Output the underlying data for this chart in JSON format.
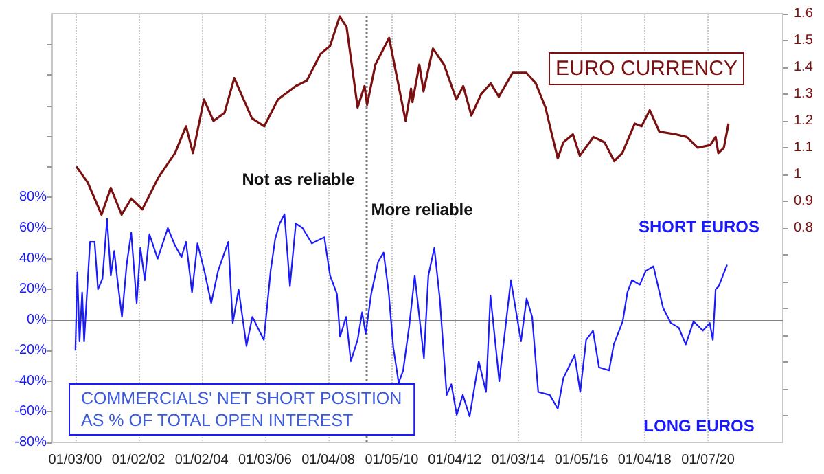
{
  "chart_data": {
    "type": "line",
    "series": [
      {
        "name": "EURO CURRENCY",
        "color": "#7b1010",
        "axis": "y2",
        "x": [
          "2000-01-16",
          "2000-05-26",
          "2000-11-02",
          "2001-02-17",
          "2001-06-22",
          "2001-10-11",
          "2002-02-16",
          "2002-08-23",
          "2003-03-01",
          "2003-07-06",
          "2003-09-24",
          "2004-01-29",
          "2004-05-18",
          "2004-09-23",
          "2005-01-13",
          "2005-05-01",
          "2005-08-05",
          "2005-12-26",
          "2006-06-02",
          "2006-12-25",
          "2007-04-30",
          "2007-10-06",
          "2008-01-25",
          "2008-05-15",
          "2008-08-03",
          "2008-12-08",
          "2009-02-26",
          "2009-03-27",
          "2009-07-01",
          "2009-12-07",
          "2010-06-15",
          "2010-08-17",
          "2010-09-02",
          "2010-11-21",
          "2011-01-08",
          "2011-04-27",
          "2011-09-02",
          "2012-01-22",
          "2012-04-11",
          "2012-07-14",
          "2012-11-04",
          "2013-02-23",
          "2013-05-27",
          "2013-11-03",
          "2014-04-09",
          "2014-07-28",
          "2014-11-17",
          "2015-02-06",
          "2015-04-08",
          "2015-06-11",
          "2015-09-30",
          "2015-12-18",
          "2016-05-24",
          "2016-09-29",
          "2017-01-19",
          "2017-04-22",
          "2017-09-13",
          "2017-12-01",
          "2018-03-05",
          "2018-06-24",
          "2018-12-30",
          "2019-05-06",
          "2019-09-11",
          "2020-02-02",
          "2020-04-04",
          "2020-05-05",
          "2020-07-08",
          "2020-08-31"
        ],
        "values": [
          1.03,
          0.97,
          0.85,
          0.95,
          0.85,
          0.91,
          0.87,
          0.99,
          1.08,
          1.18,
          1.08,
          1.28,
          1.2,
          1.23,
          1.36,
          1.28,
          1.21,
          1.18,
          1.28,
          1.33,
          1.35,
          1.45,
          1.48,
          1.59,
          1.55,
          1.25,
          1.33,
          1.26,
          1.41,
          1.51,
          1.2,
          1.32,
          1.27,
          1.41,
          1.31,
          1.47,
          1.41,
          1.28,
          1.33,
          1.22,
          1.3,
          1.34,
          1.29,
          1.38,
          1.38,
          1.34,
          1.25,
          1.14,
          1.06,
          1.12,
          1.15,
          1.07,
          1.14,
          1.12,
          1.05,
          1.08,
          1.19,
          1.18,
          1.24,
          1.16,
          1.15,
          1.14,
          1.1,
          1.11,
          1.14,
          1.08,
          1.1,
          1.19
        ]
      },
      {
        "name": "COMMERCIALS' NET SHORT POSITION\nAS % OF TOTAL OPEN INTEREST",
        "color": "#1a1aff",
        "axis": "y",
        "x": [
          "2000-01-05",
          "2000-01-28",
          "2000-02-22",
          "2000-03-23",
          "2000-04-15",
          "2000-06-22",
          "2000-08-14",
          "2000-09-22",
          "2000-11-13",
          "2001-01-05",
          "2001-02-17",
          "2001-03-29",
          "2001-05-05",
          "2001-06-26",
          "2001-08-19",
          "2001-10-11",
          "2001-12-13",
          "2002-01-25",
          "2002-03-17",
          "2002-05-09",
          "2002-08-12",
          "2002-12-08",
          "2003-02-26",
          "2003-05-14",
          "2003-07-06",
          "2003-09-13",
          "2003-11-15",
          "2004-02-03",
          "2004-04-22",
          "2004-07-10",
          "2004-11-05",
          "2004-12-27",
          "2005-03-04",
          "2005-06-03",
          "2005-08-10",
          "2005-12-21",
          "2006-03-09",
          "2006-05-01",
          "2006-06-22",
          "2006-08-16",
          "2006-10-18",
          "2006-12-25",
          "2007-03-13",
          "2007-06-28",
          "2007-11-19",
          "2008-01-25",
          "2008-04-13",
          "2008-05-19",
          "2008-07-28",
          "2008-09-20",
          "2008-12-08",
          "2009-01-29",
          "2009-03-11",
          "2009-05-14",
          "2009-08-02",
          "2009-10-04",
          "2009-12-02",
          "2010-01-24",
          "2010-03-27",
          "2010-05-18",
          "2010-07-27",
          "2010-09-29",
          "2011-01-13",
          "2011-03-05",
          "2011-05-13",
          "2011-07-15",
          "2011-10-03",
          "2011-11-25",
          "2012-01-27",
          "2012-04-06",
          "2012-06-24",
          "2012-10-07",
          "2012-12-30",
          "2013-02-19",
          "2013-06-01",
          "2013-10-13",
          "2014-02-07",
          "2014-04-13",
          "2014-06-16",
          "2014-08-25",
          "2015-01-05",
          "2015-04-08",
          "2015-06-11",
          "2015-10-20",
          "2015-12-23",
          "2016-03-01",
          "2016-05-19",
          "2016-07-27",
          "2016-11-21",
          "2017-01-14",
          "2017-04-27",
          "2017-06-20",
          "2017-08-12",
          "2017-11-10",
          "2018-01-18",
          "2018-04-17",
          "2018-08-06",
          "2018-11-04",
          "2019-02-03",
          "2019-04-25",
          "2019-07-24",
          "2019-11-09",
          "2020-01-27",
          "2020-03-03",
          "2020-04-04",
          "2020-05-10",
          "2020-08-14"
        ],
        "values": [
          -20,
          31,
          -14,
          18,
          -14,
          51,
          51,
          20,
          27,
          66,
          29,
          45,
          26,
          2,
          36,
          57,
          11,
          47,
          26,
          56,
          40,
          60,
          49,
          41,
          51,
          18,
          50,
          32,
          11,
          32,
          51,
          -2,
          20,
          -17,
          2,
          -13,
          32,
          53,
          63,
          69,
          22,
          63,
          60,
          50,
          54,
          29,
          17,
          -11,
          2,
          -27,
          -13,
          5,
          -9,
          17,
          38,
          44,
          18,
          -18,
          -41,
          -33,
          -4,
          29,
          -25,
          29,
          47,
          14,
          -49,
          -42,
          -62,
          -49,
          -63,
          -27,
          -47,
          16,
          -40,
          26,
          -14,
          14,
          2,
          -47,
          -49,
          -58,
          -38,
          -23,
          -47,
          -13,
          -7,
          -31,
          -33,
          -16,
          -1,
          18,
          26,
          23,
          32,
          35,
          8,
          -2,
          -5,
          -16,
          -1,
          -7,
          -2,
          -13,
          20,
          22,
          36
        ]
      }
    ],
    "xlim": [
      "1999-04-12",
      "2022-05-20"
    ],
    "xticks": [
      {
        "value": "2000-01-03",
        "label": "01/03/00"
      },
      {
        "value": "2002-01-02",
        "label": "01/02/02"
      },
      {
        "value": "2004-01-02",
        "label": "01/02/04"
      },
      {
        "value": "2006-01-03",
        "label": "01/03/06"
      },
      {
        "value": "2008-01-04",
        "label": "01/04/08"
      },
      {
        "value": "2010-01-05",
        "label": "01/05/10"
      },
      {
        "value": "2012-01-04",
        "label": "01/04/12"
      },
      {
        "value": "2014-01-03",
        "label": "01/03/14"
      },
      {
        "value": "2016-01-05",
        "label": "01/05/16"
      },
      {
        "value": "2018-01-04",
        "label": "01/04/18"
      },
      {
        "value": "2020-01-07",
        "label": "01/07/20"
      }
    ],
    "ylim": [
      -80,
      200
    ],
    "yticks": [
      {
        "value": -80,
        "label": "-80%"
      },
      {
        "value": -60,
        "label": "-60%"
      },
      {
        "value": -40,
        "label": "-40%"
      },
      {
        "value": -20,
        "label": "-20%"
      },
      {
        "value": 0,
        "label": "0%"
      },
      {
        "value": 20,
        "label": "20%"
      },
      {
        "value": 40,
        "label": "40%"
      },
      {
        "value": 60,
        "label": "60%"
      },
      {
        "value": 80,
        "label": "80%"
      },
      {
        "value": 100,
        "label": null
      },
      {
        "value": 120,
        "label": null
      },
      {
        "value": 140,
        "label": null
      },
      {
        "value": 160,
        "label": null
      },
      {
        "value": 180,
        "label": null
      }
    ],
    "y2lim": [
      0,
      1.6
    ],
    "y2ticks": [
      {
        "value": 0.1,
        "label": null
      },
      {
        "value": 0.2,
        "label": null
      },
      {
        "value": 0.3,
        "label": null
      },
      {
        "value": 0.4,
        "label": null
      },
      {
        "value": 0.5,
        "label": null
      },
      {
        "value": 0.6,
        "label": null
      },
      {
        "value": 0.7,
        "label": null
      },
      0.8,
      0.9,
      1,
      1.1,
      1.2,
      1.3,
      1.4,
      1.5,
      1.6
    ],
    "ref_lines": [
      {
        "axis": "y",
        "value": 0,
        "color": "#808080",
        "line_style": "solid"
      },
      {
        "axis": "x",
        "value": "2009-03-11",
        "color": "#808080",
        "line_style": "dotted"
      }
    ],
    "annotations": [
      {
        "text": "Not as reliable",
        "x": "2009-03-11",
        "y": 92
      },
      {
        "text": "More reliable",
        "x": "2009-03-11",
        "y": 72
      },
      "SHORT EUROS",
      "LONG EUROS"
    ],
    "grid": "x",
    "legend": false,
    "marker": "none"
  }
}
